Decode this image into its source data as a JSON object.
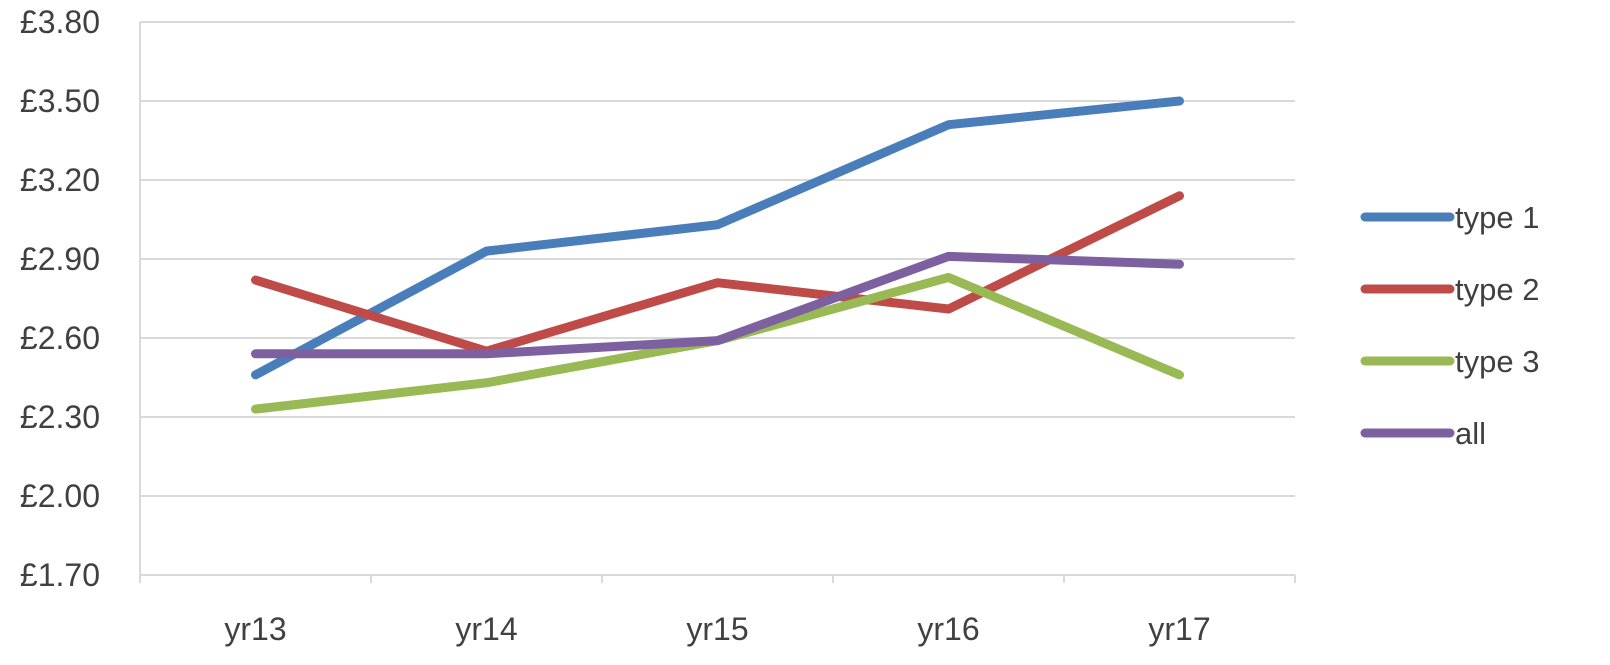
{
  "chart_data": {
    "type": "line",
    "categories": [
      "yr13",
      "yr14",
      "yr15",
      "yr16",
      "yr17"
    ],
    "series": [
      {
        "name": "type 1",
        "color": "#4a7ebb",
        "values": [
          2.46,
          2.93,
          3.03,
          3.41,
          3.5
        ]
      },
      {
        "name": "type 2",
        "color": "#be4b48",
        "values": [
          2.82,
          2.55,
          2.81,
          2.71,
          3.14
        ]
      },
      {
        "name": "type 3",
        "color": "#98b954",
        "values": [
          2.33,
          2.43,
          2.59,
          2.83,
          2.46
        ]
      },
      {
        "name": "all",
        "color": "#7d60a0",
        "values": [
          2.54,
          2.54,
          2.59,
          2.91,
          2.88
        ]
      }
    ],
    "y_ticks": [
      "£1.70",
      "£2.00",
      "£2.30",
      "£2.60",
      "£2.90",
      "£3.20",
      "£3.50",
      "£3.80"
    ],
    "ylim": [
      1.7,
      3.8
    ],
    "title": "",
    "xlabel": "",
    "ylabel": "",
    "grid": true,
    "legend_position": "right"
  }
}
